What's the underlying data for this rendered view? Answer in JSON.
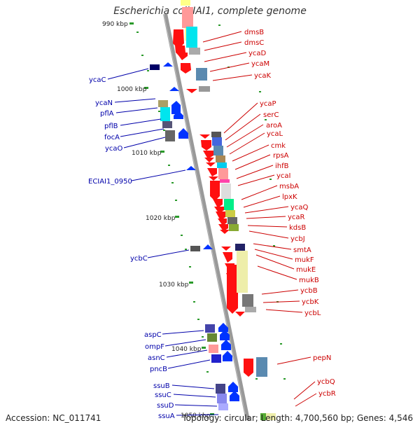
{
  "title": "Escherichia coli IAI1, complete genome",
  "footer": {
    "accession": "Accession: NC_011741",
    "summary": "Topology: circular; Length: 4,700,560 bp; Genes: 4,546"
  },
  "colors": {
    "forward": "#ff0000",
    "reverse": "#0000ee",
    "backbone": "#888888",
    "label_forward": "#cc0000",
    "label_reverse": "#0000aa"
  },
  "ticks": [
    "990 kbp",
    "1000 kbp",
    "1010 kbp",
    "1020 kbp",
    "1030 kbp",
    "1040 kbp",
    "1050 kbp"
  ],
  "genes_forward": [
    "dmsB",
    "dmsC",
    "ycaD",
    "ycaM",
    "ycaK",
    "ycaP",
    "serC",
    "aroA",
    "ycaL",
    "cmk",
    "rpsA",
    "ihfB",
    "ycaI",
    "msbA",
    "lpxK",
    "ycaQ",
    "ycaR",
    "kdsB",
    "ycbJ",
    "smtA",
    "mukF",
    "mukE",
    "mukB",
    "ycbB",
    "ycbK",
    "ycbL",
    "pepN",
    "ycbQ",
    "ycbR"
  ],
  "genes_reverse": [
    "ycaC",
    "ycaN",
    "pflA",
    "pflB",
    "focA",
    "ycaO",
    "ECIAI1_0950",
    "ycbC",
    "aspC",
    "ompF",
    "asnC",
    "pncB",
    "ssuB",
    "ssuC",
    "ssuD",
    "ssuA"
  ]
}
